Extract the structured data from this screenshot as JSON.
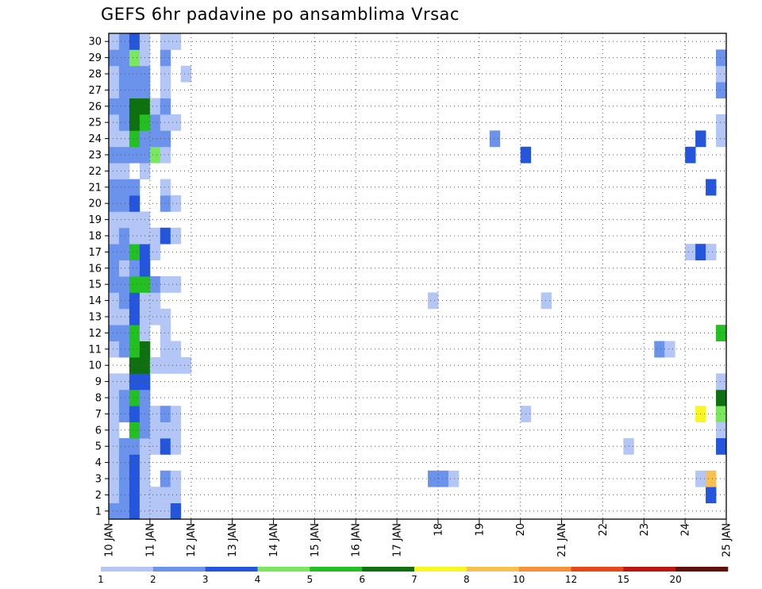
{
  "chart_data": {
    "type": "heatmap",
    "title": "GEFS 6hr padavine po ansamblima Vrsac",
    "xlabel": "",
    "ylabel": "",
    "x_tick_labels": [
      "10 JAN",
      "11 JAN",
      "12 JAN",
      "13 JAN",
      "14 JAN",
      "15 JAN",
      "16 JAN",
      "17 JAN",
      "18",
      "19",
      "20",
      "21 JAN",
      "22",
      "23",
      "24",
      "25 JAN"
    ],
    "y_tick_labels": [
      "1",
      "2",
      "3",
      "4",
      "5",
      "6",
      "7",
      "8",
      "9",
      "10",
      "11",
      "12",
      "13",
      "14",
      "15",
      "16",
      "17",
      "18",
      "19",
      "20",
      "21",
      "22",
      "23",
      "24",
      "25",
      "26",
      "27",
      "28",
      "29",
      "30"
    ],
    "xlim": [
      0,
      60
    ],
    "ylim": [
      0.5,
      30.5
    ],
    "grid": true,
    "colorbar": {
      "labels": [
        "1",
        "2",
        "3",
        "4",
        "5",
        "6",
        "7",
        "8",
        "10",
        "12",
        "15",
        "20"
      ],
      "colors": [
        "#b3c6f5",
        "#6b93ec",
        "#2356dc",
        "#7ae85c",
        "#22c020",
        "#0f7010",
        "#f8f820",
        "#f8c050",
        "#f89038",
        "#e84818",
        "#b81810",
        "#601008"
      ]
    },
    "cells": [
      [
        1,
        0,
        2
      ],
      [
        1,
        1,
        2
      ],
      [
        1,
        2,
        3
      ],
      [
        1,
        3,
        1
      ],
      [
        1,
        4,
        1
      ],
      [
        1,
        5,
        1
      ],
      [
        1,
        6,
        3
      ],
      [
        2,
        0,
        1
      ],
      [
        2,
        1,
        2
      ],
      [
        2,
        2,
        3
      ],
      [
        2,
        3,
        1
      ],
      [
        2,
        4,
        1
      ],
      [
        2,
        5,
        1
      ],
      [
        2,
        6,
        1
      ],
      [
        3,
        0,
        1
      ],
      [
        3,
        1,
        2
      ],
      [
        3,
        2,
        3
      ],
      [
        3,
        3,
        1
      ],
      [
        3,
        5,
        2
      ],
      [
        3,
        6,
        1
      ],
      [
        4,
        0,
        1
      ],
      [
        4,
        1,
        2
      ],
      [
        4,
        2,
        3
      ],
      [
        4,
        3,
        1
      ],
      [
        5,
        0,
        1
      ],
      [
        5,
        1,
        2
      ],
      [
        5,
        2,
        2
      ],
      [
        5,
        3,
        1
      ],
      [
        5,
        4,
        1
      ],
      [
        5,
        5,
        3
      ],
      [
        5,
        6,
        1
      ],
      [
        6,
        0,
        1
      ],
      [
        6,
        2,
        5
      ],
      [
        6,
        3,
        2
      ],
      [
        6,
        4,
        1
      ],
      [
        6,
        5,
        1
      ],
      [
        6,
        6,
        1
      ],
      [
        7,
        0,
        1
      ],
      [
        7,
        1,
        2
      ],
      [
        7,
        2,
        3
      ],
      [
        7,
        3,
        2
      ],
      [
        7,
        4,
        1
      ],
      [
        7,
        5,
        2
      ],
      [
        7,
        6,
        1
      ],
      [
        8,
        0,
        1
      ],
      [
        8,
        1,
        2
      ],
      [
        8,
        2,
        5
      ],
      [
        8,
        3,
        2
      ],
      [
        9,
        0,
        1
      ],
      [
        9,
        1,
        1
      ],
      [
        9,
        2,
        3
      ],
      [
        9,
        3,
        3
      ],
      [
        10,
        2,
        6
      ],
      [
        10,
        3,
        6
      ],
      [
        10,
        4,
        1
      ],
      [
        10,
        5,
        1
      ],
      [
        10,
        6,
        1
      ],
      [
        10,
        7,
        1
      ],
      [
        11,
        0,
        1
      ],
      [
        11,
        1,
        2
      ],
      [
        11,
        2,
        5
      ],
      [
        11,
        3,
        6
      ],
      [
        11,
        5,
        1
      ],
      [
        11,
        6,
        1
      ],
      [
        12,
        0,
        2
      ],
      [
        12,
        1,
        2
      ],
      [
        12,
        2,
        5
      ],
      [
        12,
        3,
        1
      ],
      [
        12,
        5,
        1
      ],
      [
        13,
        0,
        1
      ],
      [
        13,
        1,
        1
      ],
      [
        13,
        2,
        3
      ],
      [
        13,
        3,
        1
      ],
      [
        13,
        4,
        1
      ],
      [
        13,
        5,
        1
      ],
      [
        14,
        0,
        1
      ],
      [
        14,
        1,
        2
      ],
      [
        14,
        2,
        3
      ],
      [
        14,
        3,
        1
      ],
      [
        14,
        4,
        1
      ],
      [
        15,
        0,
        2
      ],
      [
        15,
        1,
        2
      ],
      [
        15,
        2,
        5
      ],
      [
        15,
        3,
        5
      ],
      [
        15,
        4,
        2
      ],
      [
        15,
        5,
        1
      ],
      [
        15,
        6,
        1
      ],
      [
        16,
        0,
        2
      ],
      [
        16,
        1,
        1
      ],
      [
        16,
        2,
        2
      ],
      [
        16,
        3,
        3
      ],
      [
        17,
        0,
        2
      ],
      [
        17,
        1,
        2
      ],
      [
        17,
        2,
        5
      ],
      [
        17,
        3,
        3
      ],
      [
        17,
        4,
        1
      ],
      [
        18,
        0,
        1
      ],
      [
        18,
        1,
        2
      ],
      [
        18,
        2,
        1
      ],
      [
        18,
        3,
        1
      ],
      [
        18,
        4,
        1
      ],
      [
        18,
        5,
        3
      ],
      [
        18,
        6,
        1
      ],
      [
        19,
        0,
        1
      ],
      [
        19,
        1,
        1
      ],
      [
        19,
        2,
        1
      ],
      [
        19,
        3,
        1
      ],
      [
        20,
        0,
        2
      ],
      [
        20,
        1,
        2
      ],
      [
        20,
        2,
        3
      ],
      [
        20,
        5,
        2
      ],
      [
        20,
        6,
        1
      ],
      [
        21,
        0,
        2
      ],
      [
        21,
        1,
        2
      ],
      [
        21,
        2,
        2
      ],
      [
        21,
        5,
        1
      ],
      [
        22,
        0,
        1
      ],
      [
        22,
        1,
        1
      ],
      [
        22,
        3,
        1
      ],
      [
        23,
        0,
        2
      ],
      [
        23,
        1,
        2
      ],
      [
        23,
        2,
        2
      ],
      [
        23,
        3,
        2
      ],
      [
        23,
        4,
        4
      ],
      [
        23,
        5,
        1
      ],
      [
        24,
        0,
        1
      ],
      [
        24,
        1,
        1
      ],
      [
        24,
        2,
        5
      ],
      [
        24,
        3,
        2
      ],
      [
        24,
        4,
        2
      ],
      [
        24,
        5,
        2
      ],
      [
        25,
        0,
        1
      ],
      [
        25,
        1,
        2
      ],
      [
        25,
        2,
        6
      ],
      [
        25,
        3,
        5
      ],
      [
        25,
        4,
        2
      ],
      [
        25,
        5,
        1
      ],
      [
        25,
        6,
        1
      ],
      [
        26,
        0,
        2
      ],
      [
        26,
        1,
        2
      ],
      [
        26,
        2,
        6
      ],
      [
        26,
        3,
        6
      ],
      [
        26,
        4,
        1
      ],
      [
        26,
        5,
        2
      ],
      [
        27,
        0,
        1
      ],
      [
        27,
        1,
        2
      ],
      [
        27,
        2,
        2
      ],
      [
        27,
        3,
        2
      ],
      [
        27,
        5,
        1
      ],
      [
        28,
        0,
        1
      ],
      [
        28,
        1,
        2
      ],
      [
        28,
        2,
        2
      ],
      [
        28,
        3,
        2
      ],
      [
        28,
        5,
        1
      ],
      [
        28,
        7,
        1
      ],
      [
        29,
        0,
        2
      ],
      [
        29,
        1,
        2
      ],
      [
        29,
        2,
        4
      ],
      [
        29,
        3,
        1
      ],
      [
        29,
        5,
        2
      ],
      [
        30,
        0,
        1
      ],
      [
        30,
        1,
        2
      ],
      [
        30,
        2,
        3
      ],
      [
        30,
        3,
        1
      ],
      [
        30,
        5,
        1
      ],
      [
        30,
        6,
        1
      ],
      [
        14,
        31,
        1
      ],
      [
        3,
        31,
        2
      ],
      [
        3,
        32,
        2
      ],
      [
        3,
        33,
        1
      ],
      [
        24,
        37,
        2
      ],
      [
        7,
        40,
        1
      ],
      [
        23,
        40,
        3
      ],
      [
        14,
        42,
        1
      ],
      [
        5,
        50,
        1
      ],
      [
        11,
        53,
        2
      ],
      [
        11,
        54,
        1
      ],
      [
        17,
        56,
        1
      ],
      [
        17,
        57,
        3
      ],
      [
        3,
        57,
        1
      ],
      [
        7,
        57,
        7
      ],
      [
        23,
        56,
        3
      ],
      [
        24,
        57,
        3
      ],
      [
        2,
        58,
        3
      ],
      [
        3,
        58,
        8
      ],
      [
        17,
        58,
        1
      ],
      [
        21,
        58,
        3
      ],
      [
        7,
        59,
        4
      ],
      [
        8,
        59,
        6
      ],
      [
        9,
        59,
        1
      ],
      [
        6,
        59,
        1
      ],
      [
        5,
        59,
        3
      ],
      [
        12,
        59,
        5
      ],
      [
        27,
        59,
        2
      ],
      [
        28,
        59,
        1
      ],
      [
        25,
        59,
        1
      ],
      [
        29,
        59,
        2
      ],
      [
        24,
        59,
        1
      ]
    ]
  }
}
